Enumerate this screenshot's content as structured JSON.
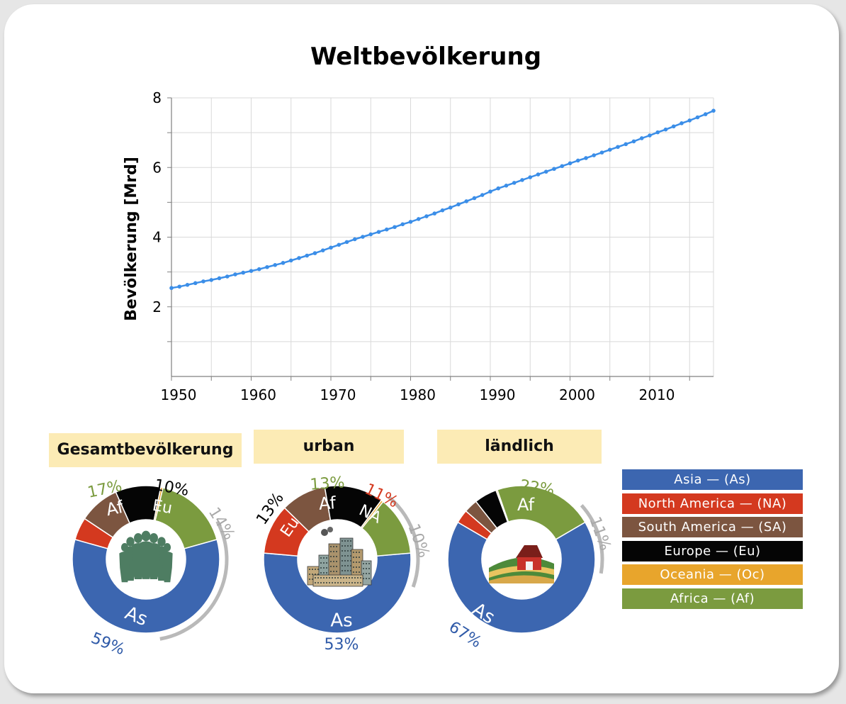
{
  "chart_data": [
    {
      "type": "line",
      "title": "Weltbevölkerung",
      "ylabel": "Bevölkerung [Mrd]",
      "xlabel": "",
      "xlim": [
        1950,
        2018
      ],
      "ylim": [
        0,
        8
      ],
      "x_ticks": [
        "1950",
        "1960",
        "1970",
        "1980",
        "1990",
        "2000",
        "2010"
      ],
      "y_ticks": [
        "2",
        "4",
        "6",
        "8"
      ],
      "grid": true,
      "color": "#3b8ee8",
      "series": [
        {
          "x": [
            1950,
            1951,
            1952,
            1953,
            1954,
            1955,
            1956,
            1957,
            1958,
            1959,
            1960,
            1961,
            1962,
            1963,
            1964,
            1965,
            1966,
            1967,
            1968,
            1969,
            1970,
            1971,
            1972,
            1973,
            1974,
            1975,
            1976,
            1977,
            1978,
            1979,
            1980,
            1981,
            1982,
            1983,
            1984,
            1985,
            1986,
            1987,
            1988,
            1989,
            1990,
            1991,
            1992,
            1993,
            1994,
            1995,
            1996,
            1997,
            1998,
            1999,
            2000,
            2001,
            2002,
            2003,
            2004,
            2005,
            2006,
            2007,
            2008,
            2009,
            2010,
            2011,
            2012,
            2013,
            2014,
            2015,
            2016,
            2017,
            2018
          ],
          "y": [
            2.54,
            2.58,
            2.63,
            2.68,
            2.73,
            2.77,
            2.82,
            2.87,
            2.93,
            2.98,
            3.03,
            3.08,
            3.14,
            3.2,
            3.26,
            3.33,
            3.4,
            3.47,
            3.54,
            3.62,
            3.7,
            3.78,
            3.86,
            3.94,
            4.01,
            4.08,
            4.15,
            4.22,
            4.29,
            4.37,
            4.44,
            4.52,
            4.6,
            4.68,
            4.77,
            4.85,
            4.94,
            5.03,
            5.12,
            5.21,
            5.31,
            5.4,
            5.48,
            5.56,
            5.64,
            5.72,
            5.8,
            5.88,
            5.96,
            6.04,
            6.12,
            6.2,
            6.27,
            6.35,
            6.43,
            6.51,
            6.59,
            6.67,
            6.75,
            6.84,
            6.92,
            7.01,
            7.09,
            7.18,
            7.27,
            7.35,
            7.44,
            7.53,
            7.63
          ]
        }
      ]
    },
    {
      "type": "pie",
      "title": "Gesamtbevölkerung",
      "categories": [
        "Asia",
        "North America",
        "South America",
        "Europe",
        "Oceania",
        "Africa"
      ],
      "values": [
        59,
        5,
        9,
        10,
        0.5,
        17
      ],
      "labels": [
        "59%",
        "10%",
        "17%",
        "14%"
      ],
      "segment_labels": [
        "As",
        "Eu",
        "Af"
      ]
    },
    {
      "type": "pie",
      "title": "urban",
      "categories": [
        "Asia",
        "North America",
        "South America",
        "Europe",
        "Oceania",
        "Africa"
      ],
      "values": [
        53,
        11,
        10,
        13,
        0.5,
        13
      ],
      "labels": [
        "53%",
        "13%",
        "13%",
        "11%",
        "10%"
      ],
      "segment_labels": [
        "As",
        "Eu",
        "Af",
        "NA"
      ]
    },
    {
      "type": "pie",
      "title": "ländlich",
      "categories": [
        "Asia",
        "North America",
        "South America",
        "Europe",
        "Oceania",
        "Africa"
      ],
      "values": [
        67,
        3,
        3,
        5,
        0.3,
        22
      ],
      "labels": [
        "67%",
        "22%",
        "11%"
      ],
      "segment_labels": [
        "As",
        "Af"
      ]
    }
  ],
  "legend": [
    {
      "label": "Asia — (As)",
      "color": "#3c66b0"
    },
    {
      "label": "North America — (NA)",
      "color": "#d4391f"
    },
    {
      "label": "South America — (SA)",
      "color": "#7c5540"
    },
    {
      "label": "Europe — (Eu)",
      "color": "#050505"
    },
    {
      "label": "Oceania — (Oc)",
      "color": "#e8a52c"
    },
    {
      "label": "Africa — (Af)",
      "color": "#7b9b3f"
    }
  ],
  "icons": [
    "people-group-icon",
    "city-buildings-icon",
    "farm-barn-icon"
  ]
}
